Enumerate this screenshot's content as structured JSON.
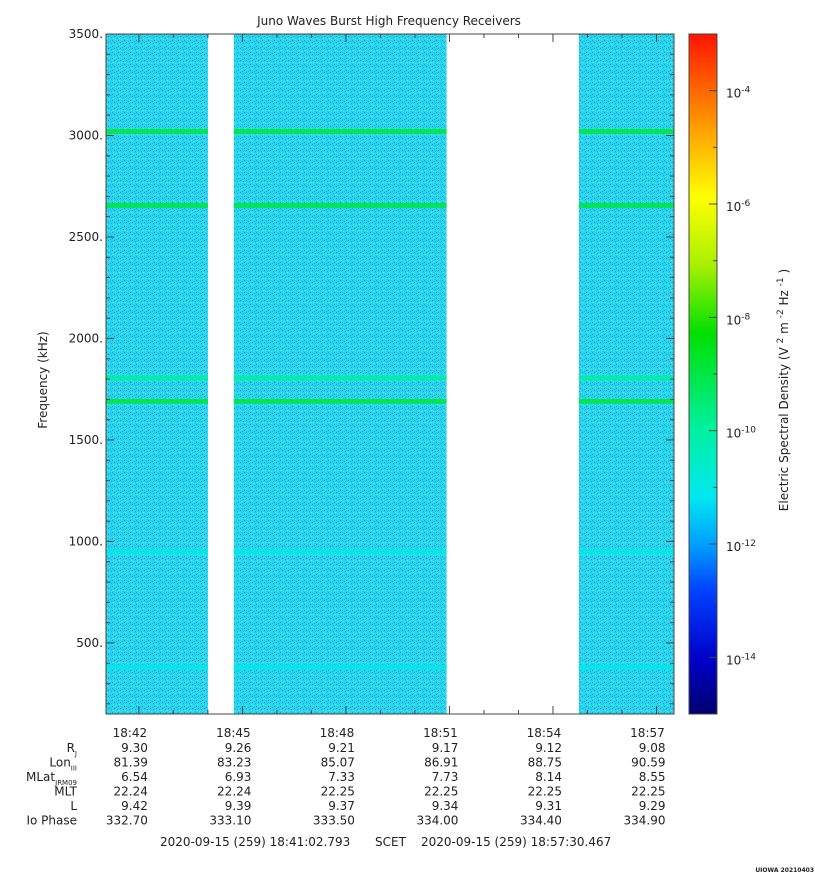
{
  "chart_data": {
    "type": "heatmap",
    "title": "Juno Waves Burst High Frequency Receivers",
    "ylabel": "Frequency (kHz)",
    "ylim": [
      150,
      3500
    ],
    "yticks": [
      {
        "value": 500,
        "label": "500."
      },
      {
        "value": 1000,
        "label": "1000."
      },
      {
        "value": 1500,
        "label": "1500."
      },
      {
        "value": 2000,
        "label": "2000."
      },
      {
        "value": 2500,
        "label": "2500."
      },
      {
        "value": 3000,
        "label": "3000."
      },
      {
        "value": 3500,
        "label": "3500."
      }
    ],
    "xlim": [
      "18:41:02.793",
      "18:57:30.467"
    ],
    "xticks": [
      "18:42",
      "18:45",
      "18:48",
      "18:51",
      "18:54",
      "18:57"
    ],
    "data_gaps": [
      [
        "18:44:00",
        "18:44:45"
      ],
      [
        "18:50:55",
        "18:54:45"
      ]
    ],
    "background_level": 1e-12,
    "emission_lines_khz": [
      {
        "freq": 1690,
        "level": 1e-09
      },
      {
        "freq": 1805,
        "level": 1e-10
      },
      {
        "freq": 2655,
        "level": 1e-09
      },
      {
        "freq": 3020,
        "level": 1e-09
      },
      {
        "freq": 950,
        "level": 1e-11
      },
      {
        "freq": 380,
        "level": 1e-11
      }
    ],
    "colorbar": {
      "label": "Electric Spectral Density (V² m⁻² Hz⁻¹)",
      "label_text": "Electric Spectral Density",
      "label_units_open": "(V",
      "label_units_mid": " m",
      "label_units_end": " Hz",
      "label_close": ")",
      "sup_2": "2",
      "sup_m2": "-2",
      "sup_m1": "-1",
      "scale": "log",
      "range": [
        1e-15,
        0.001
      ],
      "ticks": [
        {
          "base": "10",
          "exp": "-4",
          "value": 0.0001
        },
        {
          "base": "10",
          "exp": "-6",
          "value": 1e-06
        },
        {
          "base": "10",
          "exp": "-8",
          "value": 1e-08
        },
        {
          "base": "10",
          "exp": "-10",
          "value": 1e-10
        },
        {
          "base": "10",
          "exp": "-12",
          "value": 1e-12
        },
        {
          "base": "10",
          "exp": "-14",
          "value": 1e-14
        }
      ]
    },
    "ephemeris": {
      "rows": [
        {
          "label": "R",
          "sub": "J",
          "values": [
            "9.30",
            "9.26",
            "9.21",
            "9.17",
            "9.12",
            "9.08"
          ]
        },
        {
          "label": "Lon",
          "sub": "III",
          "values": [
            "81.39",
            "83.23",
            "85.07",
            "86.91",
            "88.75",
            "90.59"
          ]
        },
        {
          "label": "MLat",
          "sub": "JRM09",
          "values": [
            "6.54",
            "6.93",
            "7.33",
            "7.73",
            "8.14",
            "8.55"
          ]
        },
        {
          "label": "MLT",
          "sub": "",
          "values": [
            "22.24",
            "22.24",
            "22.25",
            "22.25",
            "22.25",
            "22.25"
          ]
        },
        {
          "label": "L",
          "sub": "",
          "values": [
            "9.42",
            "9.39",
            "9.37",
            "9.34",
            "9.31",
            "9.29"
          ]
        },
        {
          "label": "Io Phase",
          "sub": "",
          "values": [
            "332.70",
            "333.10",
            "333.50",
            "334.00",
            "334.40",
            "334.90"
          ]
        }
      ]
    },
    "time_span": {
      "start": "2020-09-15 (259) 18:41:02.793",
      "mid": "SCET",
      "end": "2020-09-15 (259) 18:57:30.467"
    },
    "credit": "UIOWA 20210403"
  }
}
